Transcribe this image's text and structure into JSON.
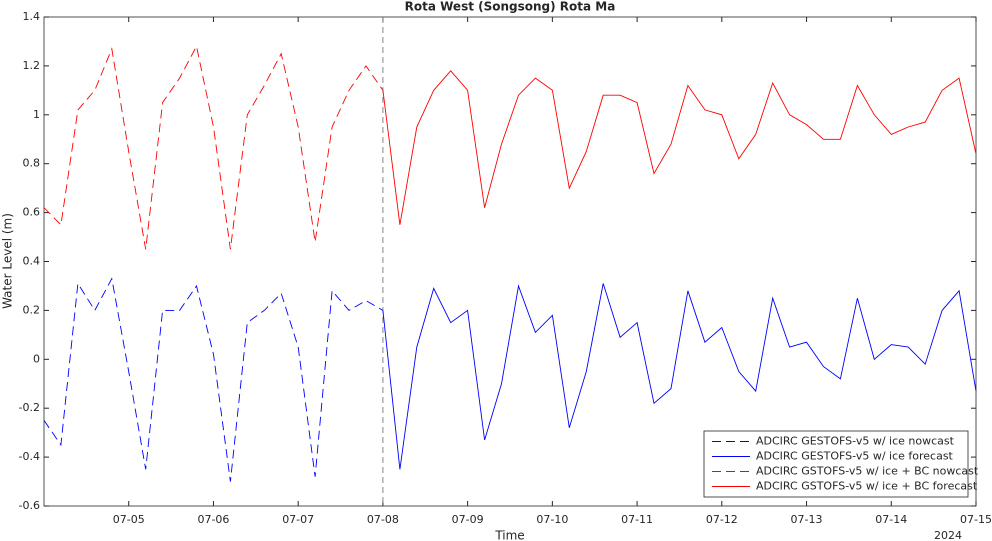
{
  "chart_data": {
    "type": "line",
    "title": "Rota West (Songsong) Rota Ma",
    "xlabel": "Time",
    "ylabel": "Water Level (m)",
    "x_year_label": "2024",
    "x": [
      4,
      4.2,
      4.4,
      4.6,
      4.8,
      5,
      5.2,
      5.4,
      5.6,
      5.8,
      6,
      6.2,
      6.4,
      6.6,
      6.8,
      7,
      7.2,
      7.4,
      7.6,
      7.8,
      8,
      8.2,
      8.4,
      8.6,
      8.8,
      9,
      9.2,
      9.4,
      9.6,
      9.8,
      10,
      10.2,
      10.4,
      10.6,
      10.8,
      11,
      11.2,
      11.4,
      11.6,
      11.8,
      12,
      12.2,
      12.4,
      12.6,
      12.8,
      13,
      13.2,
      13.4,
      13.6,
      13.8,
      14,
      14.2,
      14.4,
      14.6,
      14.8,
      15
    ],
    "series": [
      {
        "name": "ADCIRC GESTOFS-v5 w/ ice nowcast",
        "color": "#0000ff",
        "dashed": true,
        "values": [
          -0.25,
          -0.35,
          0.31,
          0.2,
          0.33,
          -0.05,
          -0.45,
          0.2,
          0.2,
          0.3,
          0.02,
          -0.5,
          0.15,
          0.2,
          0.27,
          0.05,
          -0.48,
          0.28,
          0.2,
          0.24,
          0.2,
          null,
          null,
          null,
          null,
          null,
          null,
          null,
          null,
          null,
          null,
          null,
          null,
          null,
          null,
          null,
          null,
          null,
          null,
          null,
          null,
          null,
          null,
          null,
          null,
          null,
          null,
          null,
          null,
          null,
          null,
          null,
          null,
          null,
          null,
          null
        ]
      },
      {
        "name": "ADCIRC GESTOFS-v5 w/ ice forecast",
        "color": "#0000ff",
        "dashed": false,
        "values": [
          null,
          null,
          null,
          null,
          null,
          null,
          null,
          null,
          null,
          null,
          null,
          null,
          null,
          null,
          null,
          null,
          null,
          null,
          null,
          null,
          0.2,
          -0.45,
          0.05,
          0.29,
          0.15,
          0.2,
          -0.33,
          -0.1,
          0.3,
          0.11,
          0.18,
          -0.28,
          -0.05,
          0.31,
          0.09,
          0.15,
          -0.18,
          -0.12,
          0.28,
          0.07,
          0.13,
          -0.05,
          -0.13,
          0.25,
          0.05,
          0.07,
          -0.03,
          -0.08,
          0.25,
          0,
          0.06,
          0.05,
          -0.02,
          0.2,
          0.28,
          -0.13
        ]
      },
      {
        "name": "ADCIRC GSTOFS-v5 w/ ice + BC nowcast",
        "color": "#ff0000",
        "dashed": true,
        "values": [
          0.62,
          0.55,
          1.02,
          1.1,
          1.27,
          0.85,
          0.45,
          1.05,
          1.15,
          1.28,
          0.95,
          0.45,
          1,
          1.12,
          1.25,
          0.95,
          0.48,
          0.95,
          1.1,
          1.2,
          1.1,
          null,
          null,
          null,
          null,
          null,
          null,
          null,
          null,
          null,
          null,
          null,
          null,
          null,
          null,
          null,
          null,
          null,
          null,
          null,
          null,
          null,
          null,
          null,
          null,
          null,
          null,
          null,
          null,
          null,
          null,
          null,
          null,
          null,
          null,
          null
        ]
      },
      {
        "name": "ADCIRC GSTOFS-v5 w/ ice + BC forecast",
        "color": "#ff0000",
        "dashed": false,
        "values": [
          null,
          null,
          null,
          null,
          null,
          null,
          null,
          null,
          null,
          null,
          null,
          null,
          null,
          null,
          null,
          null,
          null,
          null,
          null,
          null,
          1.1,
          0.55,
          0.95,
          1.1,
          1.18,
          1.1,
          0.62,
          0.88,
          1.08,
          1.15,
          1.1,
          0.7,
          0.85,
          1.08,
          1.08,
          1.05,
          0.76,
          0.88,
          1.12,
          1.02,
          1,
          0.82,
          0.92,
          1.13,
          1,
          0.96,
          0.9,
          0.9,
          1.12,
          1,
          0.92,
          0.95,
          0.97,
          1.1,
          1.15,
          0.84
        ]
      }
    ],
    "xlim": [
      4,
      15
    ],
    "xticks": [
      {
        "value": 5,
        "label": "07-05"
      },
      {
        "value": 6,
        "label": "07-06"
      },
      {
        "value": 7,
        "label": "07-07"
      },
      {
        "value": 8,
        "label": "07-08"
      },
      {
        "value": 9,
        "label": "07-09"
      },
      {
        "value": 10,
        "label": "07-10"
      },
      {
        "value": 11,
        "label": "07-11"
      },
      {
        "value": 12,
        "label": "07-12"
      },
      {
        "value": 13,
        "label": "07-13"
      },
      {
        "value": 14,
        "label": "07-14"
      },
      {
        "value": 15,
        "label": "07-15"
      }
    ],
    "ylim": [
      -0.6,
      1.4
    ],
    "yticks": [
      -0.6,
      -0.4,
      -0.2,
      0,
      0.2,
      0.4,
      0.6,
      0.8,
      1,
      1.2,
      1.4
    ],
    "vline": 8,
    "grid": false,
    "legend": "lower right"
  }
}
